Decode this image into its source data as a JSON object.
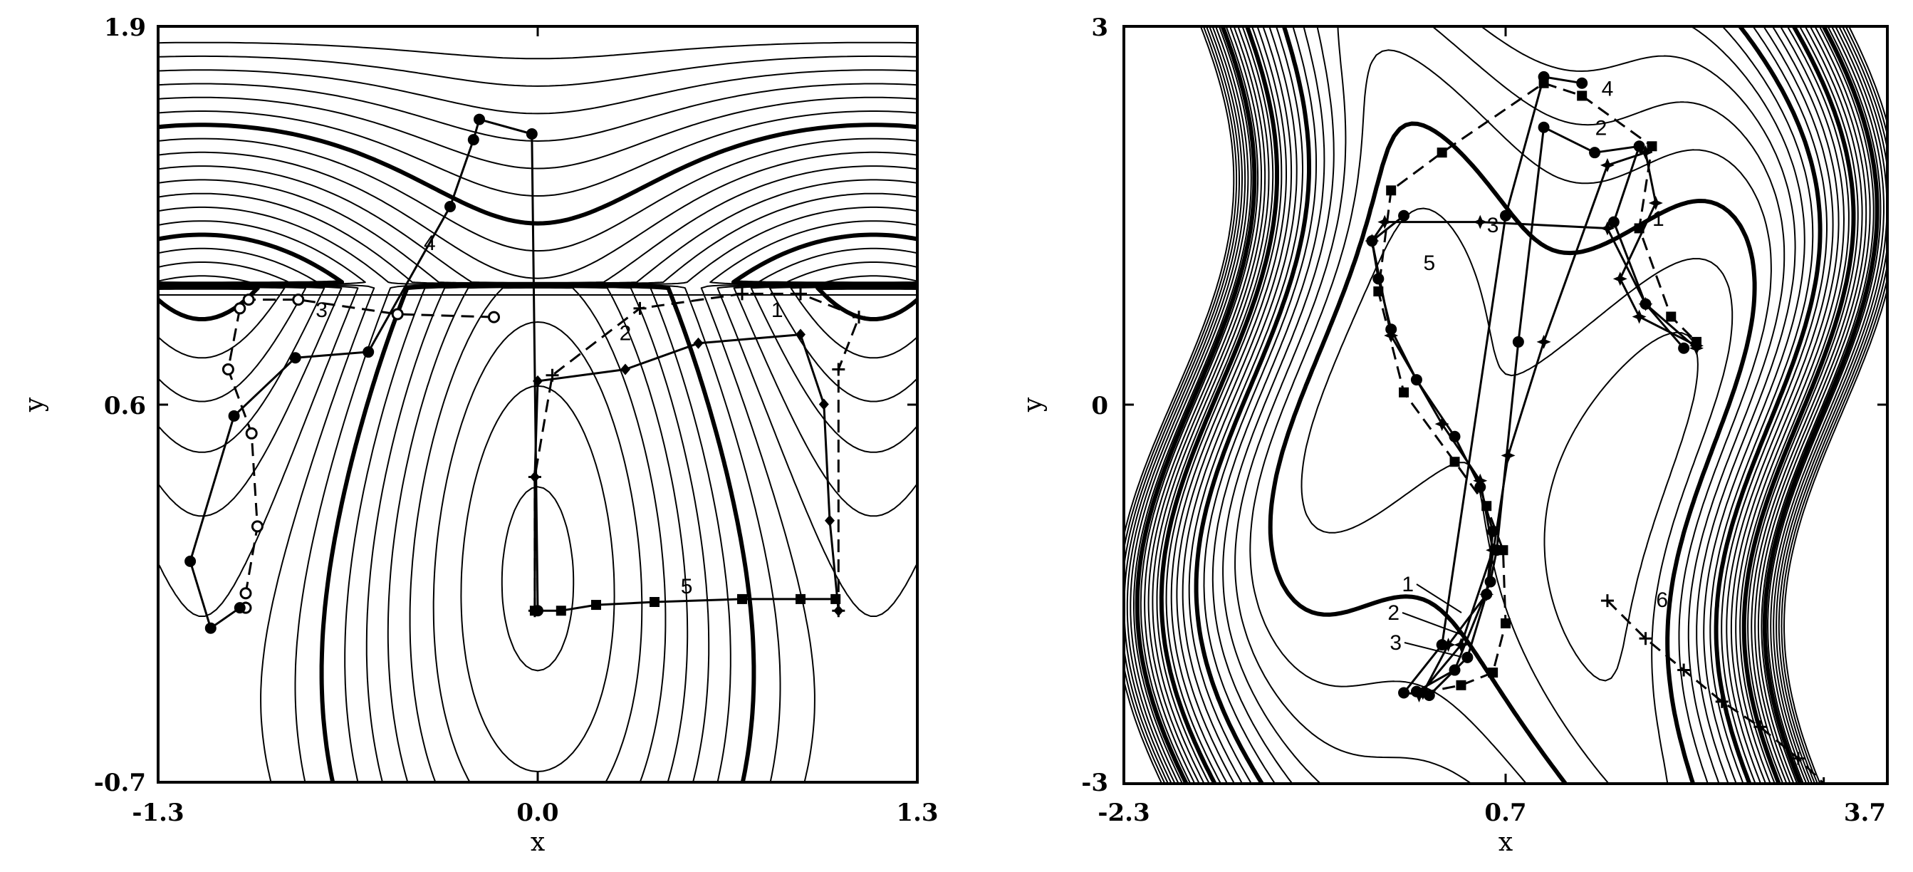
{
  "chart_data": [
    {
      "type": "line",
      "title": "",
      "xlabel": "x",
      "ylabel": "y",
      "xlim": [
        -1.3,
        1.3
      ],
      "ylim": [
        -0.7,
        1.9
      ],
      "xticks": [
        "-1.3",
        "0.0",
        "1.3"
      ],
      "yticks": [
        "-0.7",
        "0.6",
        "1.9"
      ],
      "grid": false,
      "legend": "none",
      "series": [
        {
          "name": "1",
          "style": "solid",
          "marker": "diamond",
          "x": [
            -0.01,
            -0.01,
            0.0,
            0.3,
            0.55,
            0.9,
            0.98,
            1.0,
            1.03
          ],
          "y": [
            -0.11,
            0.35,
            0.68,
            0.72,
            0.81,
            0.84,
            0.6,
            0.2,
            -0.11
          ],
          "label_at": [
            0.82,
            0.9
          ]
        },
        {
          "name": "2",
          "style": "dashed",
          "marker": "plus",
          "x": [
            -0.01,
            -0.01,
            0.05,
            0.35,
            0.7,
            0.9,
            1.1,
            1.03,
            1.03
          ],
          "y": [
            -0.11,
            0.35,
            0.7,
            0.93,
            0.98,
            0.98,
            0.9,
            0.72,
            -0.11
          ],
          "label_at": [
            0.3,
            0.82
          ]
        },
        {
          "name": "3",
          "style": "dashed",
          "marker": "circle",
          "x": [
            -0.15,
            -0.48,
            -0.82,
            -0.99,
            -1.02,
            -1.06,
            -0.98,
            -0.96,
            -1.0,
            -1.0
          ],
          "y": [
            0.9,
            0.91,
            0.96,
            0.96,
            0.93,
            0.72,
            0.5,
            0.18,
            -0.05,
            -0.1
          ],
          "label_at": [
            -0.74,
            0.9
          ]
        },
        {
          "name": "4",
          "style": "solid",
          "marker": "dot",
          "x": [
            -1.02,
            -1.12,
            -1.19,
            -1.04,
            -0.83,
            -0.58,
            -0.3,
            -0.22,
            -0.2,
            -0.02,
            0.0
          ],
          "y": [
            -0.1,
            -0.17,
            0.06,
            0.56,
            0.76,
            0.78,
            1.28,
            1.51,
            1.58,
            1.53,
            -0.11
          ],
          "label_at": [
            -0.37,
            1.13
          ]
        },
        {
          "name": "5",
          "style": "solid",
          "marker": "square",
          "x": [
            -0.01,
            0.08,
            0.2,
            0.4,
            0.7,
            0.9,
            1.02
          ],
          "y": [
            -0.11,
            -0.11,
            -0.09,
            -0.08,
            -0.07,
            -0.07,
            -0.07
          ],
          "label_at": [
            0.51,
            -0.05
          ]
        }
      ]
    },
    {
      "type": "line",
      "title": "",
      "xlabel": "x",
      "ylabel": "y",
      "xlim": [
        -2.3,
        3.7
      ],
      "ylim": [
        -3,
        3
      ],
      "xticks": [
        "-2.3",
        "0.7",
        "3.7"
      ],
      "yticks": [
        "-3",
        "0",
        "3"
      ],
      "grid": false,
      "legend": "none",
      "series": [
        {
          "name": "1",
          "style": "solid",
          "marker": "star",
          "x": [
            0.05,
            0.25,
            0.55,
            0.72,
            1.0,
            1.5,
            1.8,
            1.88,
            1.6,
            1.75,
            2.2
          ],
          "y": [
            -2.28,
            -1.9,
            -1.5,
            -0.4,
            0.5,
            1.9,
            2.0,
            1.6,
            1.0,
            0.7,
            0.47
          ],
          "label_at": [
            1.9,
            1.42
          ]
        },
        {
          "name": "2",
          "style": "solid",
          "marker": "dot",
          "x": [
            0.0,
            0.3,
            0.58,
            0.63,
            0.8,
            1.0,
            1.4,
            1.75,
            1.55,
            1.8,
            2.1
          ],
          "y": [
            -2.27,
            -2.1,
            -1.4,
            -1.15,
            0.5,
            2.2,
            2.0,
            2.05,
            1.45,
            0.8,
            0.45
          ],
          "label_at": [
            1.45,
            2.14
          ]
        },
        {
          "name": "3",
          "style": "solid",
          "marker": "star",
          "x": [
            0.02,
            0.35,
            0.6,
            0.5,
            0.2,
            -0.2,
            -0.35,
            -0.25,
            0.5,
            1.5,
            1.8,
            2.2
          ],
          "y": [
            -2.3,
            -1.9,
            -1.15,
            -0.6,
            -0.15,
            0.55,
            1.3,
            1.45,
            1.45,
            1.4,
            0.8,
            0.45
          ],
          "label_at": [
            0.6,
            1.37
          ]
        },
        {
          "name": "4",
          "style": "dashed",
          "marker": "square",
          "x": [
            0.05,
            0.35,
            0.6,
            0.7,
            0.68,
            0.55,
            0.3,
            -0.1,
            -0.3,
            -0.2,
            0.2,
            1.0,
            1.3,
            1.85,
            1.75,
            2.0,
            2.2
          ],
          "y": [
            -2.28,
            -2.22,
            -2.12,
            -1.73,
            -1.15,
            -0.8,
            -0.45,
            0.1,
            0.9,
            1.7,
            2.0,
            2.55,
            2.45,
            2.05,
            1.4,
            0.7,
            0.5
          ],
          "label_at": [
            1.5,
            2.45
          ]
        },
        {
          "name": "5",
          "style": "solid",
          "marker": "dot",
          "x": [
            -0.1,
            -0.35,
            -0.3,
            -0.2,
            0.0,
            0.3,
            0.5,
            0.6,
            0.55,
            0.4,
            0.1,
            -0.1,
            0.2,
            0.7,
            1.0,
            1.3
          ],
          "y": [
            1.5,
            1.3,
            1.0,
            0.6,
            0.2,
            -0.25,
            -0.65,
            -1.0,
            -1.5,
            -2.0,
            -2.3,
            -2.28,
            -1.9,
            1.5,
            2.6,
            2.55
          ],
          "label_at": [
            0.1,
            1.07
          ]
        },
        {
          "name": "6",
          "style": "dashed",
          "marker": "plus",
          "x": [
            1.5,
            1.8,
            2.1,
            2.4,
            2.7,
            3.0,
            3.2
          ],
          "y": [
            -1.55,
            -1.85,
            -2.1,
            -2.35,
            -2.55,
            -2.8,
            -3.0
          ],
          "label_at": [
            1.93,
            -1.6
          ]
        }
      ],
      "path_end_labels": [
        "1",
        "2",
        "3",
        "4"
      ]
    }
  ]
}
